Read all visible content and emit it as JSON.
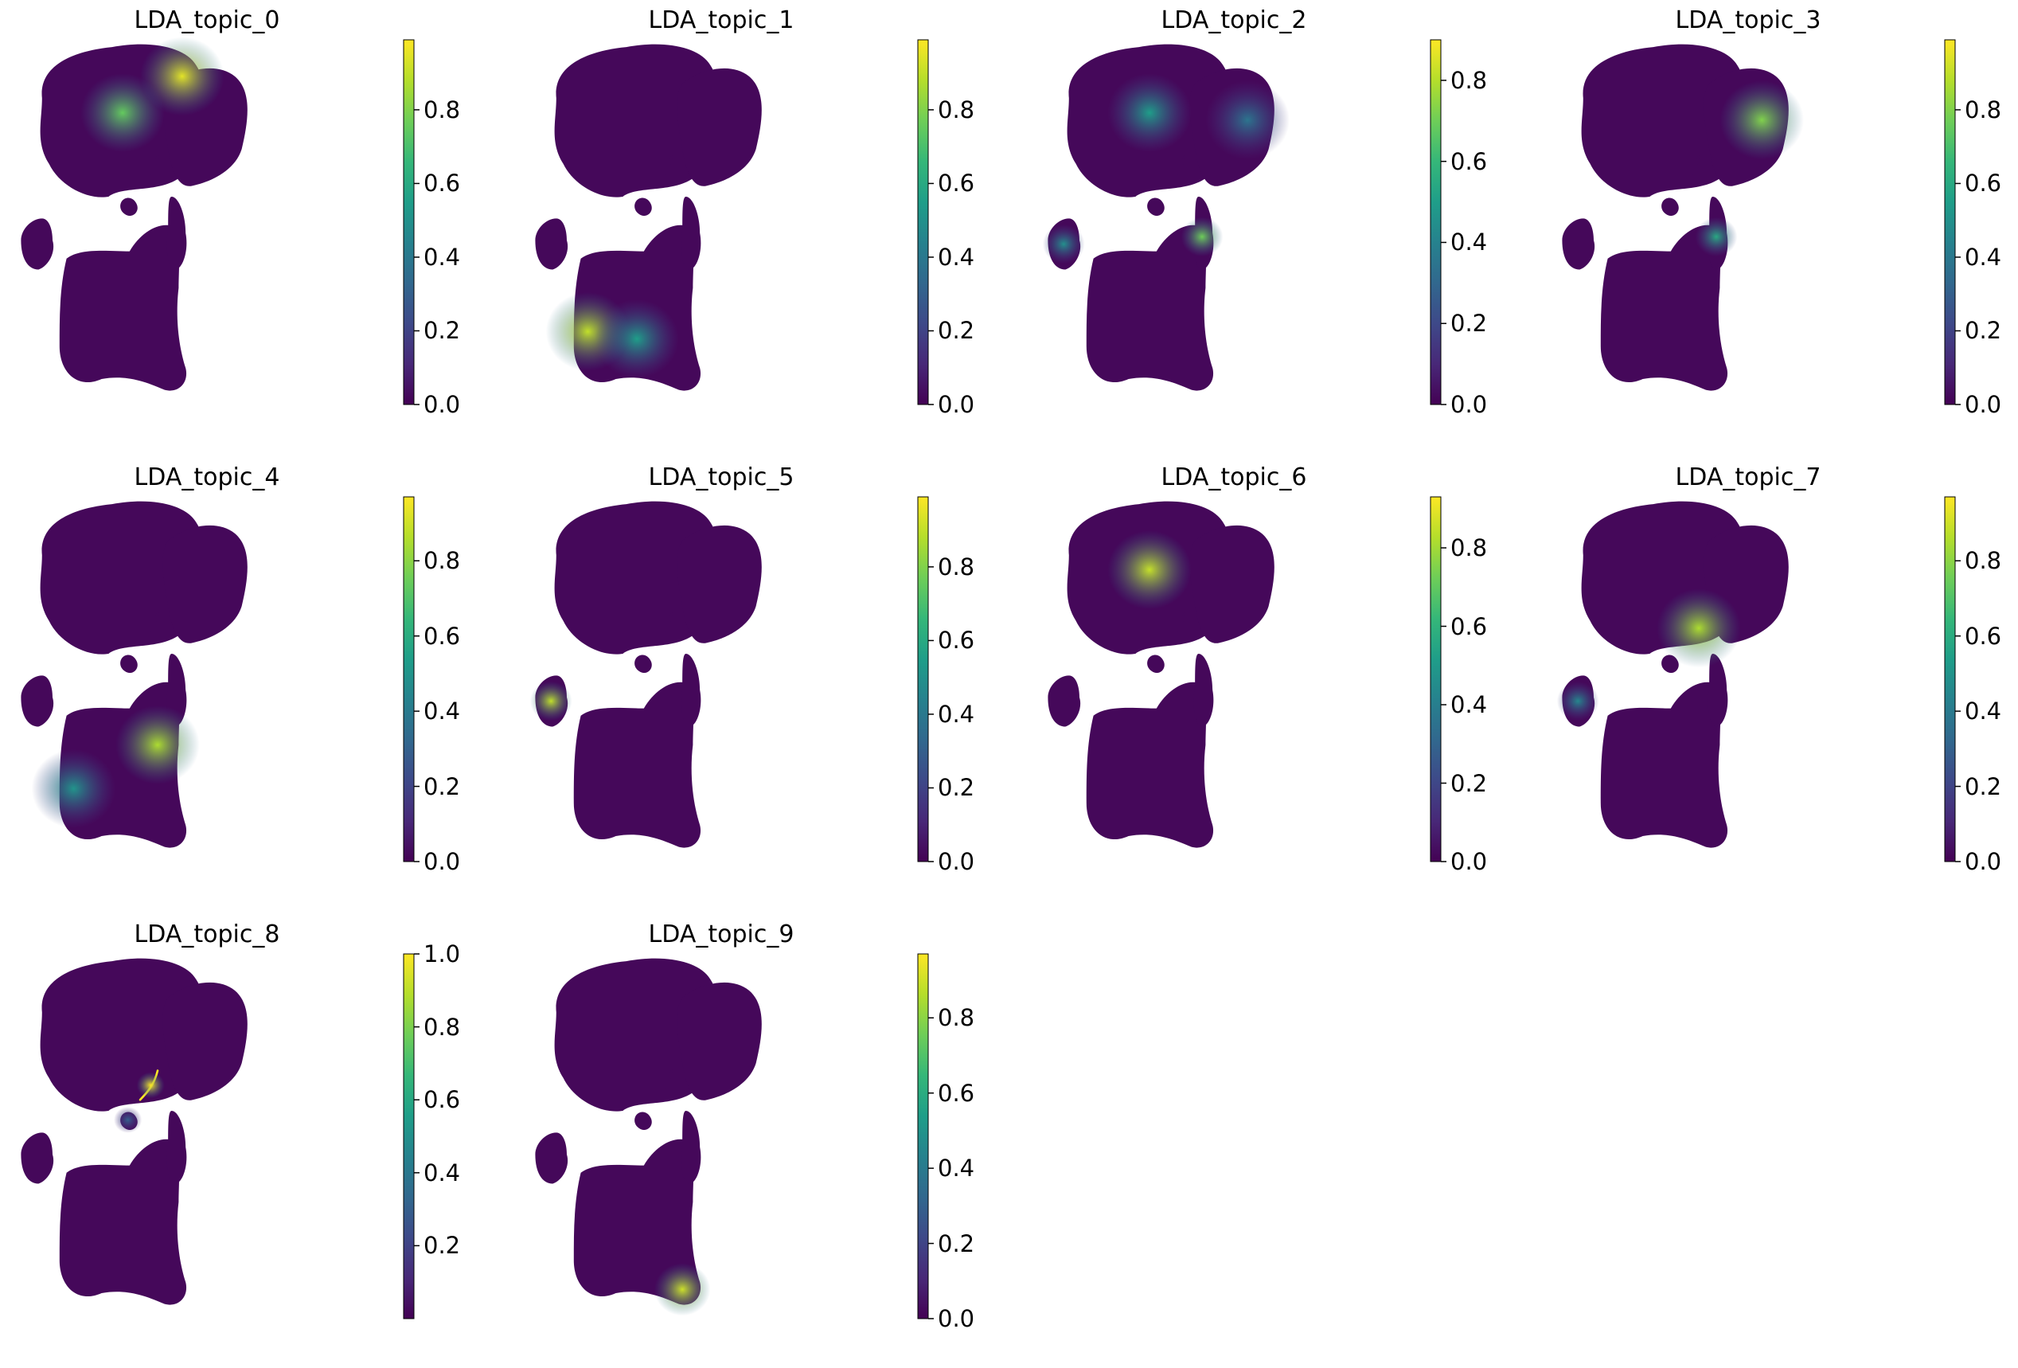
{
  "figure": {
    "colormap": "viridis",
    "colormap_stops": [
      "#440154",
      "#482878",
      "#3e4989",
      "#31688e",
      "#26828e",
      "#1f9e89",
      "#35b779",
      "#6ece58",
      "#b5de2b",
      "#fde725"
    ],
    "background": "#ffffff"
  },
  "chart_data": [
    {
      "type": "scatter",
      "title": "LDA_topic_0",
      "xlabel": "",
      "ylabel": "",
      "axes_visible": false,
      "grid": false,
      "colorbar": {
        "range": [
          0.0,
          0.99
        ],
        "ticks": [
          0.0,
          0.2,
          0.4,
          0.6,
          0.8
        ],
        "tick_labels": [
          "0.0",
          "0.2",
          "0.4",
          "0.6",
          "0.8"
        ]
      },
      "hotspots": [
        {
          "cluster": "top-left",
          "value": 0.75
        },
        {
          "cluster": "top-left-right-edge",
          "value": 0.95
        }
      ]
    },
    {
      "type": "scatter",
      "title": "LDA_topic_1",
      "xlabel": "",
      "ylabel": "",
      "axes_visible": false,
      "grid": false,
      "colorbar": {
        "range": [
          0.0,
          0.99
        ],
        "ticks": [
          0.0,
          0.2,
          0.4,
          0.6,
          0.8
        ],
        "tick_labels": [
          "0.0",
          "0.2",
          "0.4",
          "0.6",
          "0.8"
        ]
      },
      "hotspots": [
        {
          "cluster": "bottom-left",
          "value": 0.9
        },
        {
          "cluster": "bottom-center",
          "value": 0.55
        }
      ]
    },
    {
      "type": "scatter",
      "title": "LDA_topic_2",
      "xlabel": "",
      "ylabel": "",
      "axes_visible": false,
      "grid": false,
      "colorbar": {
        "range": [
          0.0,
          0.9
        ],
        "ticks": [
          0.0,
          0.2,
          0.4,
          0.6,
          0.8
        ],
        "tick_labels": [
          "0.0",
          "0.2",
          "0.4",
          "0.6",
          "0.8"
        ]
      },
      "hotspots": [
        {
          "cluster": "top-left",
          "value": 0.5
        },
        {
          "cluster": "top-right",
          "value": 0.35
        },
        {
          "cluster": "small-left",
          "value": 0.45
        },
        {
          "cluster": "right-stem",
          "value": 0.7
        }
      ]
    },
    {
      "type": "scatter",
      "title": "LDA_topic_3",
      "xlabel": "",
      "ylabel": "",
      "axes_visible": false,
      "grid": false,
      "colorbar": {
        "range": [
          0.0,
          0.99
        ],
        "ticks": [
          0.0,
          0.2,
          0.4,
          0.6,
          0.8
        ],
        "tick_labels": [
          "0.0",
          "0.2",
          "0.4",
          "0.6",
          "0.8"
        ]
      },
      "hotspots": [
        {
          "cluster": "top-right",
          "value": 0.8
        },
        {
          "cluster": "right-stem",
          "value": 0.6
        }
      ]
    },
    {
      "type": "scatter",
      "title": "LDA_topic_4",
      "xlabel": "",
      "ylabel": "",
      "axes_visible": false,
      "grid": false,
      "colorbar": {
        "range": [
          0.0,
          0.97
        ],
        "ticks": [
          0.0,
          0.2,
          0.4,
          0.6,
          0.8
        ],
        "tick_labels": [
          "0.0",
          "0.2",
          "0.4",
          "0.6",
          "0.8"
        ]
      },
      "hotspots": [
        {
          "cluster": "bottom-center-right",
          "value": 0.85
        },
        {
          "cluster": "bottom-left",
          "value": 0.5
        }
      ]
    },
    {
      "type": "scatter",
      "title": "LDA_topic_5",
      "xlabel": "",
      "ylabel": "",
      "axes_visible": false,
      "grid": false,
      "colorbar": {
        "range": [
          0.0,
          0.99
        ],
        "ticks": [
          0.0,
          0.2,
          0.4,
          0.6,
          0.8
        ],
        "tick_labels": [
          "0.0",
          "0.2",
          "0.4",
          "0.6",
          "0.8"
        ]
      },
      "hotspots": [
        {
          "cluster": "small-left",
          "value": 0.9
        }
      ]
    },
    {
      "type": "scatter",
      "title": "LDA_topic_6",
      "xlabel": "",
      "ylabel": "",
      "axes_visible": false,
      "grid": false,
      "colorbar": {
        "range": [
          0.0,
          0.93
        ],
        "ticks": [
          0.0,
          0.2,
          0.4,
          0.6,
          0.8
        ],
        "tick_labels": [
          "0.0",
          "0.2",
          "0.4",
          "0.6",
          "0.8"
        ]
      },
      "hotspots": [
        {
          "cluster": "top-left",
          "value": 0.85
        }
      ]
    },
    {
      "type": "scatter",
      "title": "LDA_topic_7",
      "xlabel": "",
      "ylabel": "",
      "axes_visible": false,
      "grid": false,
      "colorbar": {
        "range": [
          0.0,
          0.97
        ],
        "ticks": [
          0.0,
          0.2,
          0.4,
          0.6,
          0.8
        ],
        "tick_labels": [
          "0.0",
          "0.2",
          "0.4",
          "0.6",
          "0.8"
        ]
      },
      "hotspots": [
        {
          "cluster": "top-left-bottom-edge",
          "value": 0.85
        },
        {
          "cluster": "small-left",
          "value": 0.45
        }
      ]
    },
    {
      "type": "scatter",
      "title": "LDA_topic_8",
      "xlabel": "",
      "ylabel": "",
      "axes_visible": false,
      "grid": false,
      "colorbar": {
        "range": [
          0.0,
          1.0
        ],
        "ticks": [
          0.2,
          0.4,
          0.6,
          0.8,
          1.0
        ],
        "tick_labels": [
          "0.2",
          "0.4",
          "0.6",
          "0.8",
          "1.0"
        ]
      },
      "hotspots": [
        {
          "cluster": "thin-strand",
          "value": 1.0
        },
        {
          "cluster": "tiny-center",
          "value": 0.3
        }
      ]
    },
    {
      "type": "scatter",
      "title": "LDA_topic_9",
      "xlabel": "",
      "ylabel": "",
      "axes_visible": false,
      "grid": false,
      "colorbar": {
        "range": [
          0.0,
          0.97
        ],
        "ticks": [
          0.0,
          0.2,
          0.4,
          0.6,
          0.8
        ],
        "tick_labels": [
          "0.0",
          "0.2",
          "0.4",
          "0.6",
          "0.8"
        ]
      },
      "hotspots": [
        {
          "cluster": "bottom-right-tip",
          "value": 0.9
        }
      ]
    }
  ]
}
